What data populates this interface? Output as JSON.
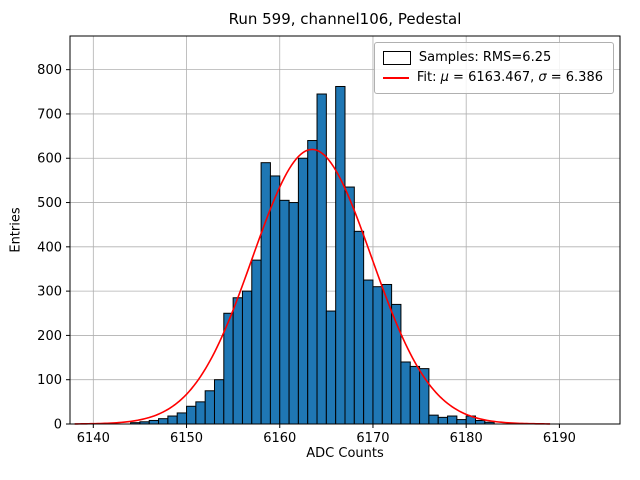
{
  "chart_data": {
    "type": "bar",
    "title": "Run 599, channel106, Pedestal",
    "xlabel": "ADC Counts",
    "ylabel": "Entries",
    "xlim": [
      6137.5,
      6196.5
    ],
    "ylim": [
      0,
      876
    ],
    "xticks": [
      6140,
      6150,
      6160,
      6170,
      6180,
      6190
    ],
    "yticks": [
      0,
      100,
      200,
      300,
      400,
      500,
      600,
      700,
      800
    ],
    "grid": true,
    "grid_color": "#b0b0b0",
    "bar_color": "#1f77b4",
    "bar_edge_color": "#000000",
    "bin_start": 6144,
    "bin_width": 1,
    "values": [
      3,
      5,
      8,
      12,
      18,
      25,
      40,
      50,
      75,
      100,
      250,
      285,
      300,
      370,
      590,
      560,
      505,
      500,
      600,
      640,
      745,
      255,
      762,
      535,
      435,
      325,
      310,
      315,
      270,
      140,
      130,
      125,
      20,
      15,
      18,
      10,
      18,
      8,
      4
    ],
    "fit": {
      "type": "gaussian",
      "mu": 6163.467,
      "sigma": 6.386,
      "amplitude": 620,
      "color": "#ff0000",
      "x_start": 6138,
      "x_end": 6189
    },
    "legend": {
      "position": "upper right",
      "entries": [
        {
          "swatch": "bar",
          "label": "Samples: RMS=6.25"
        },
        {
          "swatch": "line",
          "label": "Fit: μ = 6163.467, σ = 6.386"
        }
      ]
    }
  }
}
